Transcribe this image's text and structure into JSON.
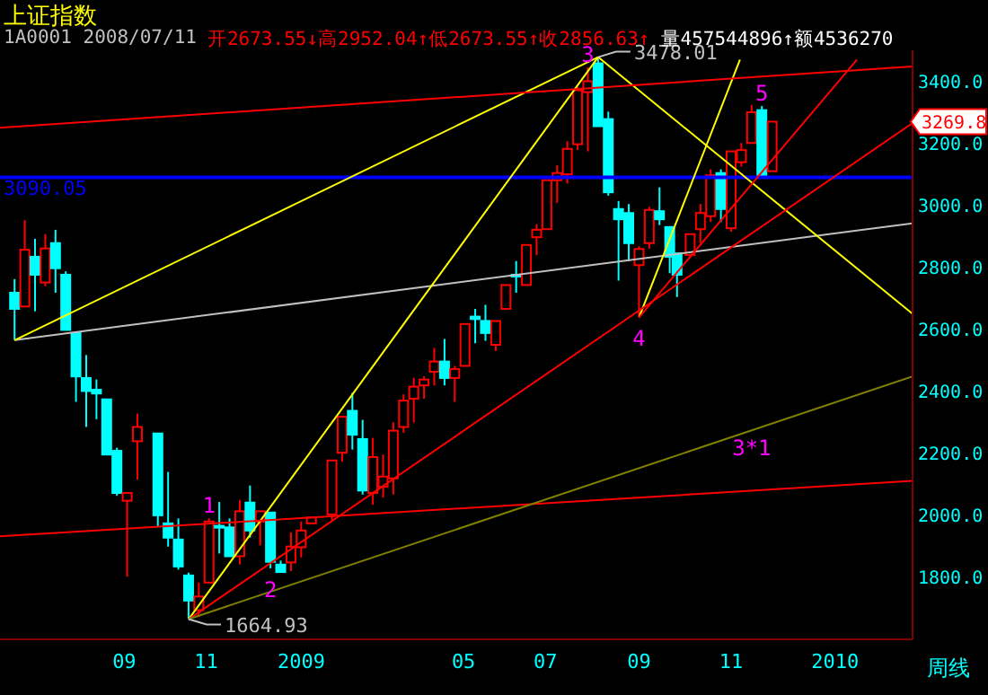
{
  "chart_data": {
    "type": "candlestick",
    "title": "上证指数",
    "x": [
      "2008-07-04",
      "2008-07-11",
      "2008-07-18",
      "2008-07-25",
      "2008-08-01",
      "2008-08-08",
      "2008-08-15",
      "2008-08-22",
      "2008-08-29",
      "2008-09-05",
      "2008-09-12",
      "2008-09-19",
      "2008-09-26",
      "2008-10-10",
      "2008-10-17",
      "2008-10-24",
      "2008-10-31",
      "2008-11-07",
      "2008-11-14",
      "2008-11-21",
      "2008-11-28",
      "2008-12-05",
      "2008-12-12",
      "2008-12-19",
      "2008-12-26",
      "2009-01-02",
      "2009-01-09",
      "2009-01-16",
      "2009-01-23",
      "2009-02-06",
      "2009-02-13",
      "2009-02-20",
      "2009-02-27",
      "2009-03-06",
      "2009-03-13",
      "2009-03-20",
      "2009-03-27",
      "2009-04-03",
      "2009-04-10",
      "2009-04-17",
      "2009-04-24",
      "2009-05-01",
      "2009-05-08",
      "2009-05-15",
      "2009-05-22",
      "2009-05-29",
      "2009-06-05",
      "2009-06-12",
      "2009-06-19",
      "2009-06-26",
      "2009-07-03",
      "2009-07-10",
      "2009-07-17",
      "2009-07-24",
      "2009-07-31",
      "2009-08-07",
      "2009-08-14",
      "2009-08-21",
      "2009-08-28",
      "2009-09-04",
      "2009-09-11",
      "2009-09-18",
      "2009-09-25",
      "2009-09-30",
      "2009-10-09",
      "2009-10-16",
      "2009-10-23",
      "2009-10-30",
      "2009-11-06",
      "2009-11-13",
      "2009-11-20",
      "2009-11-27",
      "2009-12-04"
    ],
    "ohlc": [
      [
        2718,
        2762,
        2565,
        2666
      ],
      [
        2673.55,
        2952.04,
        2673.55,
        2856.63
      ],
      [
        2834,
        2892,
        2658,
        2776
      ],
      [
        2751,
        2907,
        2739,
        2861
      ],
      [
        2878,
        2921,
        2718,
        2797
      ],
      [
        2776,
        2787,
        2590,
        2598
      ],
      [
        2588,
        2590,
        2366,
        2448
      ],
      [
        2443,
        2517,
        2285,
        2401
      ],
      [
        2405,
        2438,
        2310,
        2393
      ],
      [
        2374,
        2380,
        2190,
        2196
      ],
      [
        2208,
        2218,
        2063,
        2072
      ],
      [
        2047,
        2075,
        1802,
        2072
      ],
      [
        2239,
        2328,
        2115,
        2285
      ],
      [
        2264,
        2270,
        1964,
        2000
      ],
      [
        1974,
        2140,
        1899,
        1928
      ],
      [
        1922,
        1990,
        1825,
        1835
      ],
      [
        1806,
        1815,
        1664.93,
        1725
      ],
      [
        1694,
        1783,
        1672,
        1738
      ],
      [
        1783,
        1990,
        1775,
        1980
      ],
      [
        1966,
        2043,
        1877,
        1961
      ],
      [
        1961,
        1990,
        1865,
        1868
      ],
      [
        1868,
        2049,
        1841,
        2013
      ],
      [
        2041,
        2096,
        1928,
        1951
      ],
      [
        1980,
        2020,
        1903,
        2013
      ],
      [
        2009,
        2015,
        1829,
        1850
      ],
      [
        1841,
        1854,
        1812,
        1817
      ],
      [
        1848,
        1945,
        1820,
        1899
      ],
      [
        1897,
        1980,
        1864,
        1951
      ],
      [
        1974,
        1997,
        1970,
        1993
      ],
      [
        2003,
        2180,
        1984,
        2177
      ],
      [
        2202,
        2325,
        2173,
        2318
      ],
      [
        2337,
        2395,
        2212,
        2260
      ],
      [
        2246,
        2308,
        2067,
        2080
      ],
      [
        2072,
        2250,
        2034,
        2188
      ],
      [
        2092,
        2196,
        2057,
        2125
      ],
      [
        2119,
        2300,
        2067,
        2273
      ],
      [
        2285,
        2390,
        2266,
        2370
      ],
      [
        2376,
        2443,
        2299,
        2415
      ],
      [
        2419,
        2448,
        2376,
        2438
      ],
      [
        2463,
        2540,
        2419,
        2496
      ],
      [
        2496,
        2569,
        2419,
        2443
      ],
      [
        2443,
        2482,
        2366,
        2472
      ],
      [
        2482,
        2625,
        2478,
        2617
      ],
      [
        2641,
        2666,
        2555,
        2633
      ],
      [
        2627,
        2679,
        2563,
        2588
      ],
      [
        2550,
        2627,
        2530,
        2627
      ],
      [
        2666,
        2750,
        2660,
        2743
      ],
      [
        2776,
        2820,
        2718,
        2772
      ],
      [
        2743,
        2880,
        2735,
        2872
      ],
      [
        2897,
        2939,
        2839,
        2921
      ],
      [
        2923,
        3085,
        2915,
        3081
      ],
      [
        3081,
        3129,
        3008,
        3104
      ],
      [
        3100,
        3207,
        3070,
        3182
      ],
      [
        3197,
        3381,
        3178,
        3371
      ],
      [
        3365,
        3445,
        3174,
        3400
      ],
      [
        3458,
        3478.01,
        3250,
        3255
      ],
      [
        3278,
        3302,
        3031,
        3042
      ],
      [
        2988,
        3014,
        2757,
        2955
      ],
      [
        2975,
        3004,
        2820,
        2878
      ],
      [
        2807,
        2868,
        2639,
        2859
      ],
      [
        2878,
        2995,
        2860,
        2985
      ],
      [
        2981,
        3058,
        2936,
        2955
      ],
      [
        2930,
        2935,
        2781,
        2834
      ],
      [
        2845,
        2849,
        2704,
        2776
      ],
      [
        2840,
        2910,
        2830,
        2907
      ],
      [
        2923,
        3004,
        2878,
        2975
      ],
      [
        2965,
        3116,
        2946,
        3097
      ],
      [
        3104,
        3116,
        2946,
        2988
      ],
      [
        2926,
        3180,
        2915,
        3174
      ],
      [
        3139,
        3201,
        3125,
        3178
      ],
      [
        3201,
        3323,
        3195,
        3300
      ],
      [
        3307,
        3320,
        3085,
        3091
      ],
      [
        3110,
        3275,
        3105,
        3269.8
      ]
    ],
    "series": [
      {
        "type": "line",
        "color": "#c0c0c0",
        "x": [
          "2008-07-04",
          "2010-03-10"
        ],
        "values": [
          2565,
          2942
        ]
      },
      {
        "type": "line",
        "color": "#ffff00",
        "x": [
          "2008-07-04",
          "2009-08-07"
        ],
        "values": [
          2565,
          3478
        ]
      },
      {
        "type": "line",
        "color": "#ffff00",
        "x": [
          "2008-10-31",
          "2009-08-07"
        ],
        "values": [
          1665,
          3478
        ]
      },
      {
        "type": "line",
        "color": "#ffff00",
        "x": [
          "2009-09-04",
          "2009-11-12"
        ],
        "values": [
          2639,
          3470
        ]
      },
      {
        "type": "line",
        "color": "#ffff00",
        "x": [
          "2009-08-07",
          "2010-03-10"
        ],
        "values": [
          3478,
          2650
        ]
      },
      {
        "type": "line",
        "color": "#ff0000",
        "x": [
          "2008-06-24",
          "2010-03-10"
        ],
        "values": [
          3250,
          3448
        ]
      },
      {
        "type": "line",
        "color": "#ff0000",
        "x": [
          "2008-06-24",
          "2010-03-10"
        ],
        "values": [
          1932,
          2111
        ]
      },
      {
        "type": "line",
        "color": "#ff0000",
        "x": [
          "2008-10-31",
          "2010-03-10"
        ],
        "values": [
          1665,
          3265
        ]
      },
      {
        "type": "line",
        "color": "#ff0000",
        "x": [
          "2009-09-04",
          "2010-01-31"
        ],
        "values": [
          2639,
          3470
        ]
      },
      {
        "type": "line",
        "color": "#808000",
        "x": [
          "2008-10-31",
          "2010-03-10"
        ],
        "values": [
          1665,
          2448
        ]
      }
    ],
    "xlim": [
      "2008-06-24",
      "2010-03-10"
    ],
    "xticks": [
      {
        "value": "2008-09-17",
        "label": "09"
      },
      {
        "value": "2008-11-12",
        "label": "11"
      },
      {
        "value": "2009-01-16",
        "label": "2009"
      },
      {
        "value": "2009-05-07",
        "label": "05"
      },
      {
        "value": "2009-07-02",
        "label": "07"
      },
      {
        "value": "2009-09-04",
        "label": "09"
      },
      {
        "value": "2009-11-06",
        "label": "11"
      },
      {
        "value": "2010-01-16",
        "label": "2010"
      }
    ],
    "ylim": [
      1600,
      3500
    ],
    "yticks": [
      {
        "value": 1800,
        "label": "1800.0"
      },
      {
        "value": 2000,
        "label": "2000.0"
      },
      {
        "value": 2200,
        "label": "2200.0"
      },
      {
        "value": 2400,
        "label": "2400.0"
      },
      {
        "value": 2600,
        "label": "2600.0"
      },
      {
        "value": 2800,
        "label": "2800.0"
      },
      {
        "value": 3000,
        "label": "3000.0"
      },
      {
        "value": 3200,
        "label": "3200.0"
      },
      {
        "value": 3400,
        "label": "3400.0"
      }
    ],
    "ref_lines": [
      {
        "axis": "y",
        "value": 3090.05,
        "label": "3090.05",
        "color": "#0000ff"
      }
    ],
    "annotations": [
      "1A0001 2008/07/11",
      "开2673.55↓高2952.04↑低2673.55↑收2856.63↑",
      "量457544896↑额4536270",
      "周线",
      "3269.8",
      {
        "text": "1664.93",
        "x": "2008-10-31",
        "y": 1664.93
      },
      {
        "text": "3478.01",
        "x": "2009-08-07",
        "y": 3478.01
      },
      {
        "text": "1",
        "x": "2008-11-14",
        "y": 1990
      },
      {
        "text": "2",
        "x": "2008-12-26",
        "y": 1829
      },
      {
        "text": "3",
        "x": "2009-07-31",
        "y": 3445
      },
      {
        "text": "4",
        "x": "2009-09-04",
        "y": 2639
      },
      {
        "text": "5",
        "x": "2009-11-27",
        "y": 3320
      },
      {
        "text": "3*1",
        "x": "2009-11-20",
        "y": 2274
      }
    ]
  }
}
